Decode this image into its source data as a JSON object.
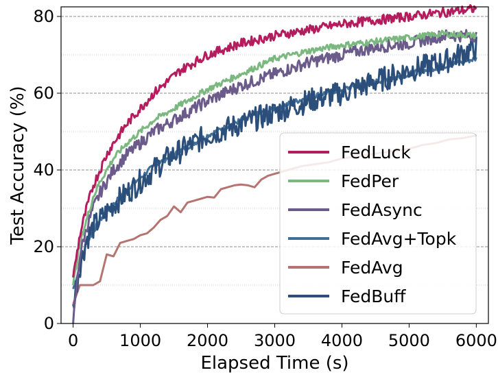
{
  "chart_data": {
    "type": "line",
    "title": "",
    "xlabel": "Elapsed Time (s)",
    "ylabel": "Test Accuracy (%)",
    "xlim": [
      -180,
      6180
    ],
    "ylim": [
      0,
      82.5
    ],
    "x_ticks": [
      0,
      1000,
      2000,
      3000,
      4000,
      5000,
      6000
    ],
    "y_ticks": [
      0,
      20,
      40,
      60,
      80
    ],
    "grid": {
      "axis": "y",
      "major_style": "dashed",
      "minor_style": "dotted",
      "minor_every": 10
    },
    "legend_position": "lower-right",
    "series": [
      {
        "name": "FedLuck",
        "color": "#b51c5e",
        "noise": 1.2,
        "x": [
          0,
          100,
          200,
          300,
          400,
          500,
          600,
          800,
          1000,
          1200,
          1400,
          1600,
          1800,
          2000,
          2500,
          3000,
          3500,
          4000,
          4500,
          5000,
          5500,
          6000
        ],
        "y": [
          12,
          23,
          30,
          36,
          40,
          44,
          47,
          52,
          56,
          60,
          63,
          66,
          68,
          70,
          73,
          75,
          76.5,
          78,
          79,
          80,
          81,
          82
        ]
      },
      {
        "name": "FedPer",
        "color": "#7ab87f",
        "noise": 0.8,
        "x": [
          0,
          100,
          200,
          300,
          400,
          500,
          600,
          800,
          1000,
          1200,
          1400,
          1600,
          1800,
          2000,
          2500,
          3000,
          3500,
          4000,
          4500,
          5000,
          5500,
          6000
        ],
        "y": [
          10,
          21,
          27,
          33,
          37,
          40,
          43,
          47,
          50,
          53,
          55,
          57,
          59,
          61,
          65,
          69,
          71,
          72.5,
          73.5,
          74.5,
          75.5,
          75
        ]
      },
      {
        "name": "FedAsync",
        "color": "#6b5b8a",
        "noise": 1.6,
        "x": [
          0,
          100,
          200,
          300,
          400,
          500,
          600,
          800,
          1000,
          1200,
          1400,
          1600,
          1800,
          2000,
          2500,
          3000,
          3500,
          4000,
          4500,
          5000,
          5500,
          6000
        ],
        "y": [
          0,
          18,
          25,
          30,
          34,
          37,
          40,
          44,
          47,
          50,
          52,
          54,
          56,
          58,
          62,
          65,
          68,
          70,
          72,
          73,
          75,
          75
        ]
      },
      {
        "name": "FedAvg+Topk",
        "color": "#3f6e99",
        "noise": 0.7,
        "x": [
          0,
          100,
          200,
          300,
          400,
          500,
          600,
          800,
          1000,
          1200,
          1400,
          1600,
          1800,
          2000,
          2500,
          3000,
          3500,
          4000,
          4500,
          5000,
          5500,
          6000
        ],
        "y": [
          9,
          15,
          21,
          24,
          27,
          29,
          31,
          35,
          38,
          41,
          43,
          45,
          47,
          49,
          53,
          56,
          59,
          61,
          63,
          65,
          67,
          69
        ]
      },
      {
        "name": "FedAvg",
        "color": "#b57470",
        "noise": 0,
        "x": [
          0,
          100,
          200,
          300,
          400,
          500,
          600,
          700,
          800,
          900,
          1000,
          1100,
          1200,
          1300,
          1400,
          1500,
          1600,
          1700,
          1800,
          1900,
          2000,
          2100,
          2200,
          2300,
          2400,
          2500,
          2600,
          2700,
          2800,
          2900,
          3000,
          3200,
          3400,
          3600,
          3800,
          4000,
          4200,
          4400,
          4600,
          4800,
          5000,
          5200,
          5400,
          5600,
          5800,
          6000
        ],
        "y": [
          5,
          10,
          10,
          10,
          11,
          18,
          17.5,
          21,
          21.5,
          22,
          23,
          23.5,
          25,
          27,
          28,
          30.5,
          29,
          31.5,
          32,
          32.5,
          33,
          32.8,
          35,
          35.5,
          36,
          36.2,
          36,
          35.5,
          37.5,
          38.5,
          39,
          40,
          41,
          41.5,
          42,
          43,
          43.5,
          44,
          44.5,
          45,
          45.5,
          46.5,
          47,
          48,
          48.3,
          49
        ]
      },
      {
        "name": "FedBuff",
        "color": "#2b4f7a",
        "noise": 3.2,
        "x": [
          0,
          100,
          200,
          300,
          400,
          500,
          600,
          800,
          1000,
          1200,
          1400,
          1600,
          1800,
          2000,
          2500,
          3000,
          3500,
          4000,
          4500,
          5000,
          5500,
          6000
        ],
        "y": [
          5,
          15,
          22,
          25,
          27,
          29,
          31,
          34,
          37,
          40,
          43,
          45,
          47,
          49,
          52,
          55,
          58,
          60,
          63,
          66,
          68,
          72
        ]
      }
    ]
  }
}
